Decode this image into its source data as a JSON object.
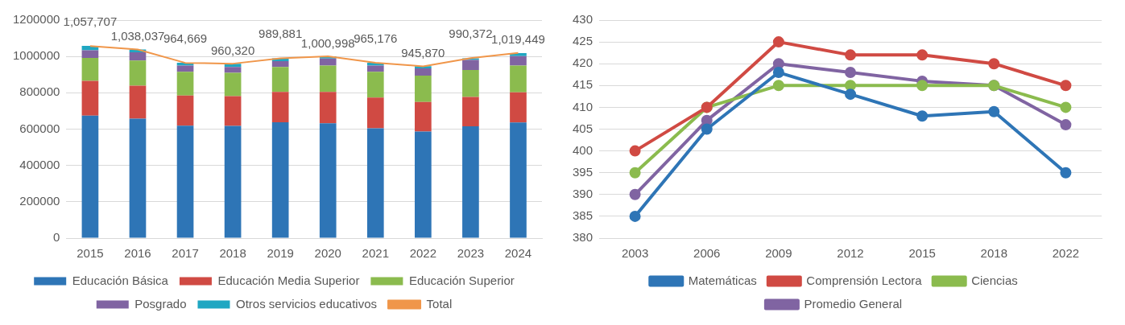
{
  "chart_data": [
    {
      "type": "bar",
      "stacked": true,
      "categories": [
        "2015",
        "2016",
        "2017",
        "2018",
        "2019",
        "2020",
        "2021",
        "2022",
        "2023",
        "2024"
      ],
      "ylim": [
        0,
        1200000
      ],
      "yticks": [
        0,
        200000,
        400000,
        600000,
        800000,
        1000000,
        1200000
      ],
      "grid": "y",
      "legend": "bottom",
      "series": [
        {
          "name": "Educación Básica",
          "color": "#2e75b6",
          "values": [
            674000,
            658000,
            619000,
            618000,
            638000,
            632000,
            604000,
            587000,
            616000,
            637000
          ]
        },
        {
          "name": "Educación Media Superior",
          "color": "#d04a43",
          "values": [
            192000,
            181000,
            166000,
            164000,
            167000,
            173000,
            170000,
            163000,
            161000,
            166000
          ]
        },
        {
          "name": "Educación Superior",
          "color": "#8bbb4e",
          "values": [
            126000,
            139000,
            131000,
            128000,
            137000,
            145000,
            142000,
            145000,
            149000,
            147000
          ]
        },
        {
          "name": "Posgrado",
          "color": "#8064a2",
          "values": [
            42000,
            45000,
            34000,
            32000,
            32000,
            39000,
            34000,
            39000,
            55000,
            52000
          ]
        },
        {
          "name": "Otros servicios educativos",
          "color": "#1fa7c2",
          "values": [
            24000,
            15000,
            15000,
            18000,
            16000,
            12000,
            15000,
            12000,
            9000,
            17000
          ]
        },
        {
          "name": "Total",
          "type": "line",
          "color": "#f0964a",
          "values": [
            1057707,
            1038037,
            964669,
            960320,
            989881,
            1000998,
            965176,
            945870,
            990372,
            1019449
          ],
          "value_labels": [
            "1,057,707",
            "1,038,037",
            "964,669",
            "960,320",
            "989,881",
            "1,000,998",
            "965,176",
            "945,870",
            "990,372",
            "1,019,449"
          ]
        }
      ]
    },
    {
      "type": "line",
      "categories": [
        "2003",
        "2006",
        "2009",
        "2012",
        "2015",
        "2018",
        "2022"
      ],
      "ylim": [
        380,
        430
      ],
      "yticks": [
        380,
        385,
        390,
        395,
        400,
        405,
        410,
        415,
        420,
        425,
        430
      ],
      "grid": "y",
      "legend": "bottom",
      "marker": "circle",
      "series": [
        {
          "name": "Matemáticas",
          "color": "#2e75b6",
          "values": [
            385,
            405,
            418,
            413,
            408,
            409,
            395
          ]
        },
        {
          "name": "Comprensión Lectora",
          "color": "#d04a43",
          "values": [
            400,
            410,
            425,
            422,
            422,
            420,
            415
          ]
        },
        {
          "name": "Ciencias",
          "color": "#8bbb4e",
          "values": [
            395,
            410,
            415,
            415,
            415,
            415,
            410
          ]
        },
        {
          "name": "Promedio General",
          "color": "#8064a2",
          "values": [
            390,
            407,
            420,
            418,
            416,
            415,
            406
          ]
        }
      ]
    }
  ]
}
